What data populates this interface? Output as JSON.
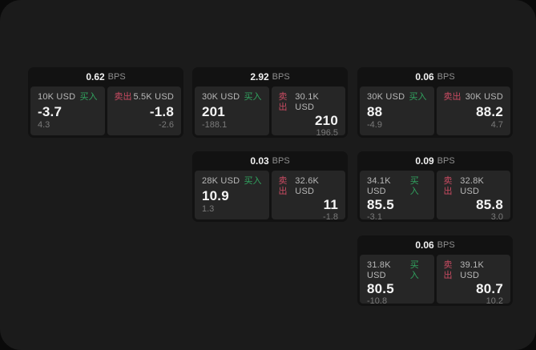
{
  "colors": {
    "outer_background": "#0a0a0a",
    "window_background": "#1b1b1b",
    "card_background": "#121212",
    "tile_background": "#262626",
    "text_primary": "#f5f5f5",
    "text_secondary": "#b8b8b8",
    "text_muted": "#7a7a7a",
    "buy_green": "#31a35f",
    "sell_red": "#c94b62"
  },
  "labels": {
    "bps_unit": "BPS",
    "buy": "买入",
    "sell": "卖出"
  },
  "cards": [
    {
      "bps": "0.62",
      "buy": {
        "notional": "10K USD",
        "price": "-3.7",
        "delta": "4.3"
      },
      "sell": {
        "notional": "5.5K USD",
        "price": "-1.8",
        "delta": "-2.6"
      }
    },
    {
      "bps": "2.92",
      "buy": {
        "notional": "30K USD",
        "price": "201",
        "delta": "-188.1"
      },
      "sell": {
        "notional": "30.1K USD",
        "price": "210",
        "delta": "196.5"
      }
    },
    {
      "bps": "0.06",
      "buy": {
        "notional": "30K USD",
        "price": "88",
        "delta": "-4.9"
      },
      "sell": {
        "notional": "30K USD",
        "price": "88.2",
        "delta": "4.7"
      }
    },
    {
      "bps": "0.03",
      "buy": {
        "notional": "28K USD",
        "price": "10.9",
        "delta": "1.3"
      },
      "sell": {
        "notional": "32.6K USD",
        "price": "11",
        "delta": "-1.8"
      }
    },
    {
      "bps": "0.09",
      "buy": {
        "notional": "34.1K USD",
        "price": "85.5",
        "delta": "-3.1"
      },
      "sell": {
        "notional": "32.8K USD",
        "price": "85.8",
        "delta": "3.0"
      }
    },
    {
      "bps": "0.06",
      "buy": {
        "notional": "31.8K USD",
        "price": "80.5",
        "delta": "-10.8"
      },
      "sell": {
        "notional": "39.1K USD",
        "price": "80.7",
        "delta": "10.2"
      }
    }
  ]
}
